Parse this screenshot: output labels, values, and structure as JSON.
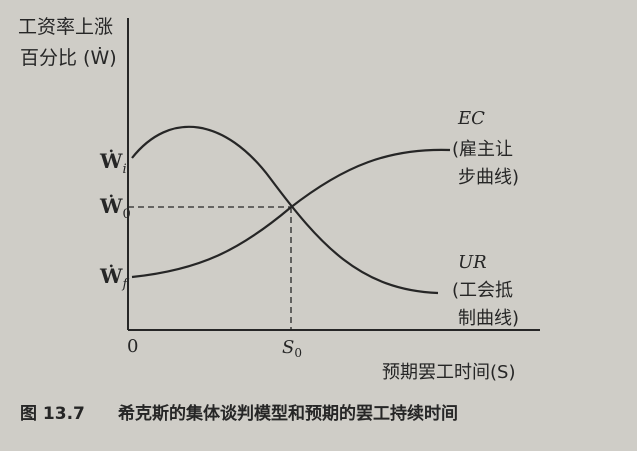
{
  "figure": {
    "y_axis_label_line1": "工资率上涨",
    "y_axis_label_line2": "百分比 (Ẇ)",
    "x_axis_label": "预期罢工时间(S)",
    "origin_label": "0",
    "y_ticks": {
      "wi": "Ẇ",
      "wi_sub": "i",
      "w0": "Ẇ",
      "w0_sub": "0",
      "wf": "Ẇ",
      "wf_sub": "f"
    },
    "x_ticks": {
      "s0": "S",
      "s0_sub": "0"
    },
    "curves": {
      "ec": {
        "abbr": "EC",
        "desc_line1": "(雇主让",
        "desc_line2": "步曲线)"
      },
      "ur": {
        "abbr": "UR",
        "desc_line1": "(工会抵",
        "desc_line2": "制曲线)"
      }
    },
    "caption_number": "图 13.7",
    "caption_text": "希克斯的集体谈判模型和预期的罢工持续时间"
  },
  "colors": {
    "background": "#cfcdc7",
    "ink": "#262626"
  }
}
